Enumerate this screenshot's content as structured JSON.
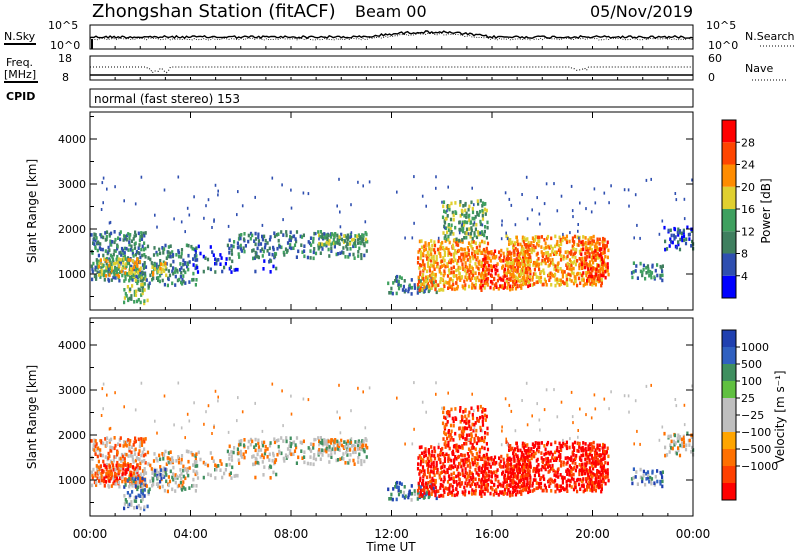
{
  "header": {
    "station": "Zhongshan Station (fitACF)",
    "beam": "Beam 00",
    "date": "05/Nov/2019"
  },
  "strips": {
    "nsky_label": "N.Sky",
    "nsearch_label": "N.Search",
    "freq_label": "Freq.",
    "freq_unit": "[MHz]",
    "nave_label": "Nave",
    "cpid_label": "CPID",
    "cpid_text": "normal (fast stereo) 153",
    "nsky_ticks": [
      "10^5",
      "10^0"
    ],
    "nsearch_ticks": [
      "10^5",
      "10^0"
    ],
    "freq_ticks": [
      "18",
      "8"
    ],
    "nave_ticks": [
      "60",
      "0"
    ]
  },
  "colors": {
    "power": [
      "#0000ff",
      "#2f4fb0",
      "#3f7f5f",
      "#3fa05f",
      "#e0d030",
      "#ff8c00",
      "#ff4500",
      "#ff0000"
    ],
    "velocity": [
      "#2040b0",
      "#3060c0",
      "#3f8f5f",
      "#60c040",
      "#bfbfbf",
      "#bfbfbf",
      "#ffa500",
      "#ff7000",
      "#ff4000",
      "#ff0000"
    ]
  },
  "chart_data": [
    {
      "type": "heatmap",
      "name": "power",
      "ylabel": "Slant Range [km]",
      "yticks": [
        "1000",
        "2000",
        "3000",
        "4000"
      ],
      "ylim": [
        200,
        4600
      ],
      "xlim": [
        0,
        24
      ],
      "colorbar_label": "Power [dB]",
      "colorbar_ticks": [
        "4",
        "8",
        "12",
        "16",
        "20",
        "24",
        "28"
      ],
      "colorbar_range": [
        0,
        32
      ]
    },
    {
      "type": "heatmap",
      "name": "velocity",
      "ylabel": "Slant Range [km]",
      "yticks": [
        "1000",
        "2000",
        "3000",
        "4000"
      ],
      "ylim": [
        200,
        4600
      ],
      "xlim": [
        0,
        24
      ],
      "colorbar_label": "Velocity [m s⁻¹]",
      "colorbar_ticks": [
        "1000",
        "500",
        "100",
        "25",
        "−25",
        "−100",
        "−500",
        "−1000"
      ]
    }
  ],
  "xaxis": {
    "label": "Time UT",
    "ticks": [
      "00:00",
      "04:00",
      "08:00",
      "12:00",
      "16:00",
      "20:00",
      "00:00"
    ]
  }
}
